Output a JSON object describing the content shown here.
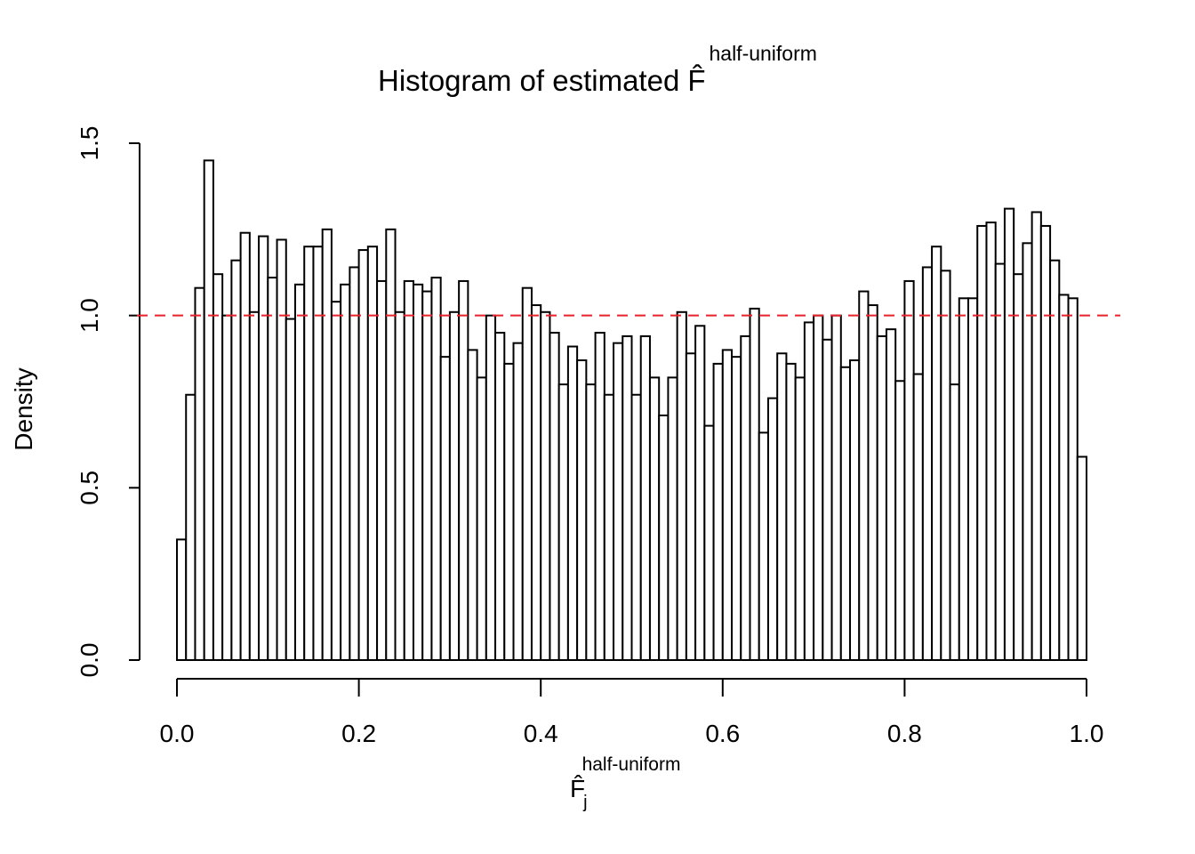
{
  "chart_data": {
    "type": "histogram",
    "title": "Histogram of estimated",
    "title_symbol": "F̂",
    "title_superscript": "half-uniform",
    "x_label": "F̂",
    "x_label_subscript": "j",
    "x_label_superscript": "half-uniform",
    "y_label": "Density",
    "bins": [
      0,
      0.01,
      0.02,
      0.03,
      0.04,
      0.05,
      0.06,
      0.07,
      0.08,
      0.09,
      0.1,
      0.11,
      0.12,
      0.13,
      0.14,
      0.15,
      0.16,
      0.17,
      0.18,
      0.19,
      0.2,
      0.21,
      0.22,
      0.23,
      0.24,
      0.25,
      0.26,
      0.27,
      0.28,
      0.29,
      0.3,
      0.31,
      0.32,
      0.33,
      0.34,
      0.35,
      0.36,
      0.37,
      0.38,
      0.39,
      0.4,
      0.41,
      0.42,
      0.43,
      0.44,
      0.45,
      0.46,
      0.47,
      0.48,
      0.49,
      0.5,
      0.51,
      0.52,
      0.53,
      0.54,
      0.55,
      0.56,
      0.57,
      0.58,
      0.59,
      0.6,
      0.61,
      0.62,
      0.63,
      0.64,
      0.65,
      0.66,
      0.67,
      0.68,
      0.69,
      0.7,
      0.71,
      0.72,
      0.73,
      0.74,
      0.75,
      0.76,
      0.77,
      0.78,
      0.79,
      0.8,
      0.81,
      0.82,
      0.83,
      0.84,
      0.85,
      0.86,
      0.87,
      0.88,
      0.89,
      0.9,
      0.91,
      0.92,
      0.93,
      0.94,
      0.95,
      0.96,
      0.97,
      0.98,
      0.99,
      1
    ],
    "values": [
      0.35,
      0.77,
      1.08,
      1.45,
      1.12,
      1.0,
      1.16,
      1.24,
      1.01,
      1.23,
      1.11,
      1.22,
      0.99,
      1.09,
      1.2,
      1.2,
      1.25,
      1.04,
      1.09,
      1.14,
      1.19,
      1.2,
      1.1,
      1.25,
      1.01,
      1.1,
      1.09,
      1.07,
      1.11,
      0.88,
      1.01,
      1.1,
      0.9,
      0.82,
      1.0,
      0.95,
      0.86,
      0.92,
      1.08,
      1.03,
      1.01,
      0.95,
      0.8,
      0.91,
      0.87,
      0.8,
      0.95,
      0.77,
      0.92,
      0.94,
      0.77,
      0.94,
      0.82,
      0.71,
      0.82,
      1.01,
      0.89,
      0.97,
      0.68,
      0.86,
      0.9,
      0.88,
      0.94,
      1.02,
      0.66,
      0.76,
      0.89,
      0.86,
      0.82,
      0.98,
      1.0,
      0.93,
      1.0,
      0.85,
      0.87,
      1.07,
      1.03,
      0.94,
      0.96,
      0.81,
      1.1,
      0.83,
      1.14,
      1.2,
      1.13,
      0.8,
      1.05,
      1.05,
      1.26,
      1.27,
      1.15,
      1.31,
      1.12,
      1.21,
      1.3,
      1.26,
      1.16,
      1.06,
      1.05,
      0.59
    ],
    "color": "#ffffff",
    "edge_color": "#000000",
    "xlim": [
      0,
      1
    ],
    "ylim": [
      0,
      1.5
    ],
    "xticks": [
      {
        "value": 0,
        "label": "0.0"
      },
      {
        "value": 0.2,
        "label": "0.2"
      },
      {
        "value": 0.4,
        "label": "0.4"
      },
      {
        "value": 0.6,
        "label": "0.6"
      },
      {
        "value": 0.8,
        "label": "0.8"
      },
      {
        "value": 1,
        "label": "1.0"
      }
    ],
    "yticks": [
      {
        "value": 0,
        "label": "0.0"
      },
      {
        "value": 0.5,
        "label": "0.5"
      },
      {
        "value": 1,
        "label": "1.0"
      },
      {
        "value": 1.5,
        "label": "1.5"
      }
    ],
    "reference_line": {
      "value": 1,
      "color": "#e8222a",
      "dashed": true
    }
  }
}
